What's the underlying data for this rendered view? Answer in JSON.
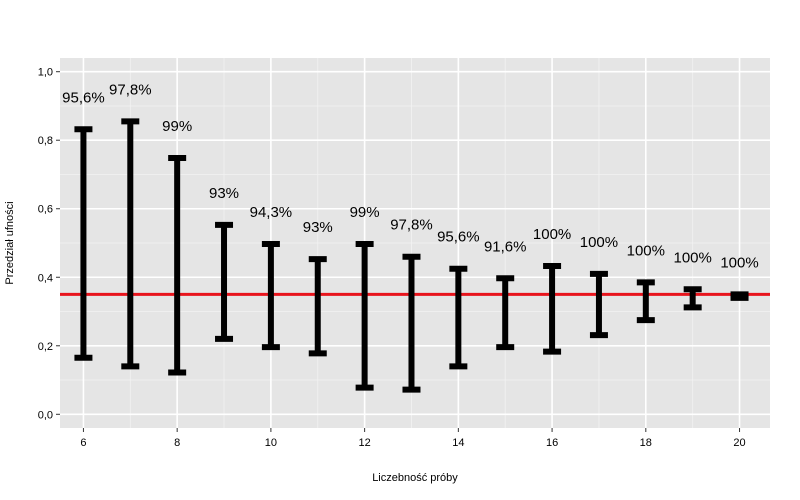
{
  "chart_data": {
    "type": "errorbar",
    "title": "",
    "xlabel": "Liczebność próby",
    "ylabel": "Przedział ufności",
    "xlim": [
      5.5,
      20.65
    ],
    "ylim": [
      -0.04,
      1.04
    ],
    "x_ticks": [
      6,
      8,
      10,
      12,
      14,
      16,
      18,
      20
    ],
    "x_tick_labels": [
      "6",
      "8",
      "10",
      "12",
      "14",
      "16",
      "18",
      "20"
    ],
    "y_ticks": [
      0.0,
      0.2,
      0.4,
      0.6,
      0.8,
      1.0
    ],
    "y_tick_labels": [
      "0,0",
      "0,2",
      "0,4",
      "0,6",
      "0,8",
      "1,0"
    ],
    "grid": true,
    "reference_line": {
      "y": 0.35,
      "color": "#e8141c"
    },
    "bar_color": "#000000",
    "panel_color": "#e5e5e5",
    "points": [
      {
        "x": 6,
        "lower": 0.165,
        "upper": 0.832,
        "label": "95,6%"
      },
      {
        "x": 7,
        "lower": 0.14,
        "upper": 0.855,
        "label": "97,8%"
      },
      {
        "x": 8,
        "lower": 0.122,
        "upper": 0.748,
        "label": "99%"
      },
      {
        "x": 9,
        "lower": 0.22,
        "upper": 0.553,
        "label": "93%"
      },
      {
        "x": 10,
        "lower": 0.196,
        "upper": 0.497,
        "label": "94,3%"
      },
      {
        "x": 11,
        "lower": 0.178,
        "upper": 0.453,
        "label": "93%"
      },
      {
        "x": 12,
        "lower": 0.078,
        "upper": 0.497,
        "label": "99%"
      },
      {
        "x": 13,
        "lower": 0.072,
        "upper": 0.46,
        "label": "97,8%"
      },
      {
        "x": 14,
        "lower": 0.14,
        "upper": 0.425,
        "label": "95,6%"
      },
      {
        "x": 15,
        "lower": 0.196,
        "upper": 0.397,
        "label": "91,6%"
      },
      {
        "x": 16,
        "lower": 0.183,
        "upper": 0.433,
        "label": "100%"
      },
      {
        "x": 17,
        "lower": 0.231,
        "upper": 0.41,
        "label": "100%"
      },
      {
        "x": 18,
        "lower": 0.275,
        "upper": 0.385,
        "label": "100%"
      },
      {
        "x": 19,
        "lower": 0.312,
        "upper": 0.365,
        "label": "100%"
      },
      {
        "x": 20,
        "lower": 0.34,
        "upper": 0.35,
        "label": "100%"
      }
    ]
  }
}
